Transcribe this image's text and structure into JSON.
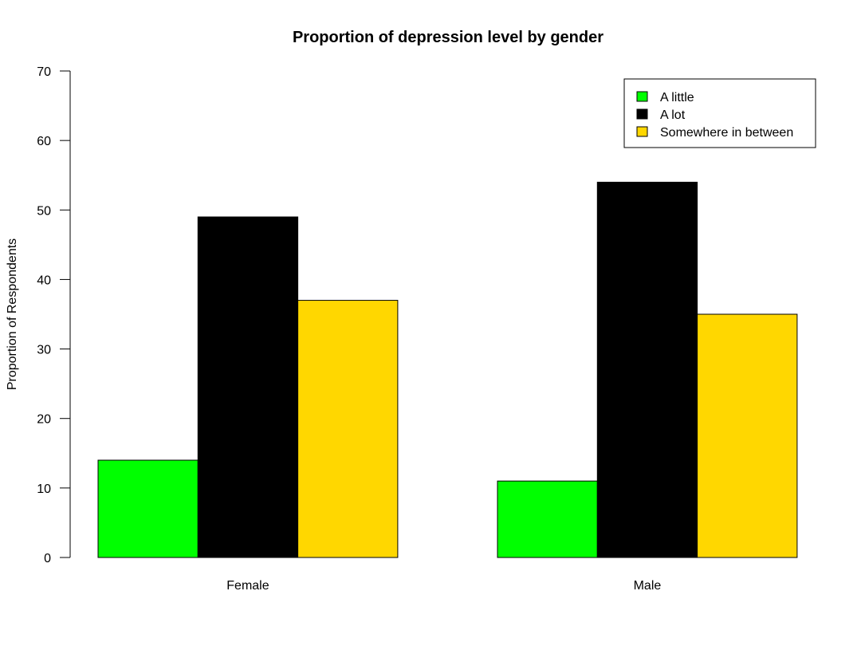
{
  "chart_data": {
    "type": "bar",
    "title": "Proportion of depression level by gender",
    "xlabel": "",
    "ylabel": "Proportion of Respondents",
    "categories": [
      "Female",
      "Male"
    ],
    "series": [
      {
        "name": "A little",
        "values": [
          14,
          11
        ],
        "color": "#00FF00"
      },
      {
        "name": "A lot",
        "values": [
          49,
          54
        ],
        "color": "#000000"
      },
      {
        "name": "Somewhere in between",
        "values": [
          37,
          35
        ],
        "color": "#FFD700"
      }
    ],
    "ylim": [
      0,
      70
    ],
    "yticks": [
      0,
      10,
      20,
      30,
      40,
      50,
      60,
      70
    ],
    "grid": false,
    "legend_position": "top-right",
    "bar_mode": "grouped"
  }
}
